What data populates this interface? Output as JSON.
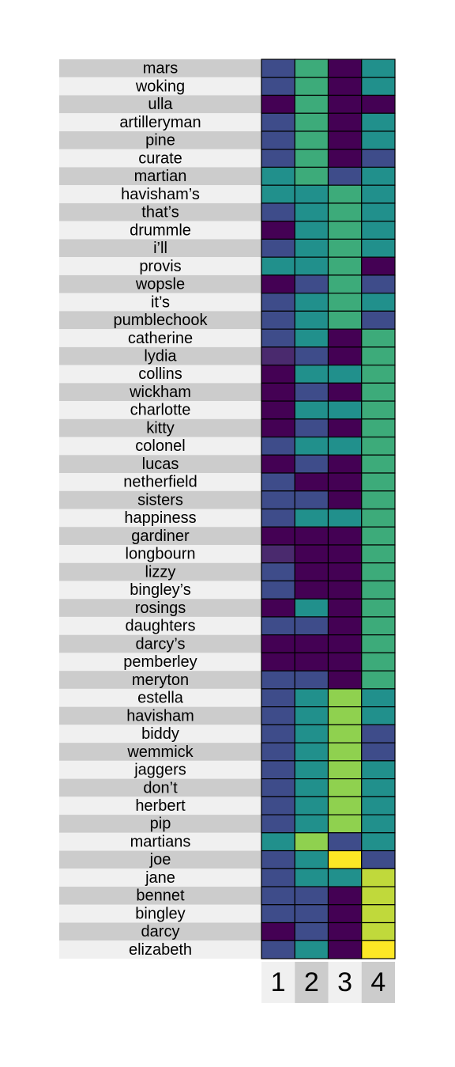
{
  "chart_data": {
    "type": "heatmap",
    "columns": [
      "1",
      "2",
      "3",
      "4"
    ],
    "rows": [
      "mars",
      "woking",
      "ulla",
      "artilleryman",
      "pine",
      "curate",
      "martian",
      "havisham’s",
      "that’s",
      "drummle",
      "i’ll",
      "provis",
      "wopsle",
      "it’s",
      "pumblechook",
      "catherine",
      "lydia",
      "collins",
      "wickham",
      "charlotte",
      "kitty",
      "colonel",
      "lucas",
      "netherfield",
      "sisters",
      "happiness",
      "gardiner",
      "longbourn",
      "lizzy",
      "bingley’s",
      "rosings",
      "daughters",
      "darcy’s",
      "pemberley",
      "meryton",
      "estella",
      "havisham",
      "biddy",
      "wemmick",
      "jaggers",
      "don’t",
      "herbert",
      "pip",
      "martians",
      "joe",
      "jane",
      "bennet",
      "bingley",
      "darcy",
      "elizabeth"
    ],
    "values": [
      [
        2,
        5,
        0,
        4
      ],
      [
        2,
        5,
        0,
        4
      ],
      [
        0,
        5,
        0,
        0
      ],
      [
        2,
        5,
        0,
        4
      ],
      [
        2,
        5,
        0,
        4
      ],
      [
        2,
        5,
        0,
        2
      ],
      [
        4,
        5,
        2,
        4
      ],
      [
        4,
        4,
        5,
        4
      ],
      [
        2,
        4,
        5,
        4
      ],
      [
        0,
        4,
        5,
        4
      ],
      [
        2,
        4,
        5,
        4
      ],
      [
        4,
        4,
        5,
        0
      ],
      [
        0,
        2,
        5,
        2
      ],
      [
        2,
        4,
        5,
        4
      ],
      [
        2,
        4,
        5,
        2
      ],
      [
        2,
        4,
        0,
        5
      ],
      [
        1,
        2,
        0,
        5
      ],
      [
        0,
        4,
        4,
        5
      ],
      [
        0,
        2,
        0,
        5
      ],
      [
        0,
        4,
        4,
        5
      ],
      [
        0,
        2,
        0,
        5
      ],
      [
        2,
        4,
        4,
        5
      ],
      [
        0,
        2,
        0,
        5
      ],
      [
        2,
        0,
        0,
        5
      ],
      [
        2,
        2,
        0,
        5
      ],
      [
        2,
        4,
        4,
        5
      ],
      [
        0,
        0,
        0,
        5
      ],
      [
        1,
        0,
        0,
        5
      ],
      [
        2,
        0,
        0,
        5
      ],
      [
        2,
        0,
        0,
        5
      ],
      [
        0,
        4,
        0,
        5
      ],
      [
        2,
        2,
        0,
        5
      ],
      [
        0,
        0,
        0,
        5
      ],
      [
        0,
        0,
        0,
        5
      ],
      [
        2,
        2,
        0,
        5
      ],
      [
        2,
        4,
        6,
        4
      ],
      [
        2,
        4,
        6,
        4
      ],
      [
        2,
        4,
        6,
        2
      ],
      [
        2,
        4,
        6,
        2
      ],
      [
        2,
        4,
        6,
        4
      ],
      [
        2,
        4,
        6,
        4
      ],
      [
        2,
        4,
        6,
        4
      ],
      [
        2,
        4,
        6,
        4
      ],
      [
        4,
        6,
        2,
        4
      ],
      [
        2,
        4,
        8,
        2
      ],
      [
        2,
        4,
        4,
        7
      ],
      [
        2,
        2,
        0,
        7
      ],
      [
        2,
        2,
        0,
        7
      ],
      [
        0,
        2,
        0,
        7
      ],
      [
        2,
        4,
        0,
        8
      ]
    ],
    "color_scale": [
      "#440154",
      "#4a2a6e",
      "#3e4c8a",
      "#31688e",
      "#21908c",
      "#3dab7a",
      "#8fd14f",
      "#c0d93b",
      "#fde725"
    ],
    "row_band_colors": [
      "#cccccc",
      "#f0f0f0"
    ],
    "column_band_colors": [
      "#f0f0f0",
      "#cccccc"
    ],
    "legend": "none",
    "grid": false
  }
}
